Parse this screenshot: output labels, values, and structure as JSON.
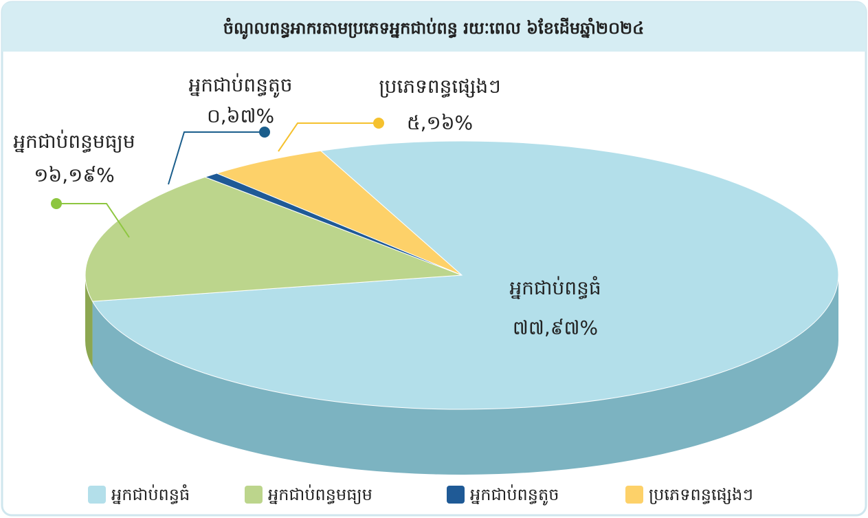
{
  "chart_data": {
    "type": "pie",
    "title": "ចំណូលពន្ធអាករតាមប្រភេទអ្នកជាប់ពន្ធ រយៈពេល ៦ខែដើមឆ្នាំ២០២៤",
    "categories": [
      "អ្នកជាប់ពន្ធធំ",
      "អ្នកជាប់ពន្ធមធ្យម",
      "អ្នកជាប់ពន្ធតូច",
      "ប្រភេទពន្ធផ្សេងៗ"
    ],
    "values": [
      77.97,
      16.19,
      0.67,
      5.16
    ],
    "value_labels": [
      "៧៧,៩៧%",
      "១៦,១៩%",
      "០,៦៧%",
      "៥,១៦%"
    ],
    "colors": [
      "#b3dfea",
      "#bcd58c",
      "#1f5a96",
      "#fdd169"
    ],
    "side_colors": [
      "#7cb3c1",
      "#8ca751",
      "#1b3e6a",
      "#c68a2f"
    ],
    "legend": "bottom"
  }
}
